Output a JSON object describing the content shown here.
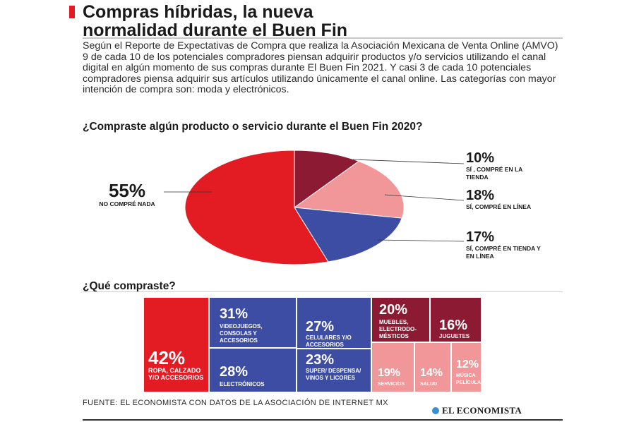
{
  "header": {
    "title_line1": "Compras híbridas, la nueva",
    "title_line2": "normalidad durante el Buen Fin",
    "accent_color": "#e31b23"
  },
  "intro": "Según el Reporte de Expectativas de Compra que realiza la Asociación Mexicana de Venta Online (AMVO)  9 de cada 10 de los potenciales compradores piensan adquirir productos y/o servicios utilizando el canal digital en algún momento de sus compras durante El Buen Fin 2021. Y casi 3 de cada 10 potenciales compradores piensa adquirir sus artículos utilizando únicamente el canal online. Las categorías con mayor intención de compra son: moda y electrónicos.",
  "chart_data": [
    {
      "type": "pie",
      "title": "¿Compraste algún producto o servicio durante el Buen Fin 2020?",
      "slices": [
        {
          "value_label": "10%",
          "value": 10,
          "label": "SÍ , COMPRÉ EN LA TIENDA",
          "color": "#8c1a33"
        },
        {
          "value_label": "18%",
          "value": 18,
          "label": "SÍ, COMPRÉ EN LÍNEA",
          "color": "#f29799"
        },
        {
          "value_label": "17%",
          "value": 17,
          "label": "SÍ, COMPRÉ EN TIENDA Y EN LÍNEA",
          "color": "#3d4da3"
        },
        {
          "value_label": "55%",
          "value": 55,
          "label": "NO  COMPRÉ NADA",
          "color": "#e31b23"
        }
      ]
    },
    {
      "type": "treemap",
      "title": "¿Qué compraste?",
      "items": [
        {
          "value_label": "42%",
          "value": 42,
          "label": "ROPA, CALZADO Y/O ACCESORIOS",
          "color": "#e31b23"
        },
        {
          "value_label": "31%",
          "value": 31,
          "label": "VIDEOJUEGOS, CONSOLAS Y ACCESORIOS",
          "color": "#3d4da3"
        },
        {
          "value_label": "28%",
          "value": 28,
          "label": "ELECTRÓNICOS",
          "color": "#3d4da3"
        },
        {
          "value_label": "27%",
          "value": 27,
          "label": "CELULARES Y/O ACCESORIOS",
          "color": "#3d4da3"
        },
        {
          "value_label": "23%",
          "value": 23,
          "label": "SUPER/ DESPENSA/ VINOS Y LICORES",
          "color": "#3d4da3"
        },
        {
          "value_label": "20%",
          "value": 20,
          "label": "MUEBLES, ELECTRODO-MÉSTICOS",
          "color": "#8c1a33"
        },
        {
          "value_label": "16%",
          "value": 16,
          "label": "JUGUETES",
          "color": "#8c1a33"
        },
        {
          "value_label": "19%",
          "value": 19,
          "label": "SERVICIOS",
          "color": "#f29799"
        },
        {
          "value_label": "14%",
          "value": 14,
          "label": "SALUD",
          "color": "#f29799"
        },
        {
          "value_label": "12%",
          "value": 12,
          "label": "MÚSICA PELÍCULAS",
          "color": "#f29799"
        }
      ]
    }
  ],
  "footer": {
    "source": "FUENTE: EL ECONOMISTA CON DATOS DE LA ASOCIACIÓN DE INTERNET MX",
    "logo": "EL ECONOMISTA"
  }
}
